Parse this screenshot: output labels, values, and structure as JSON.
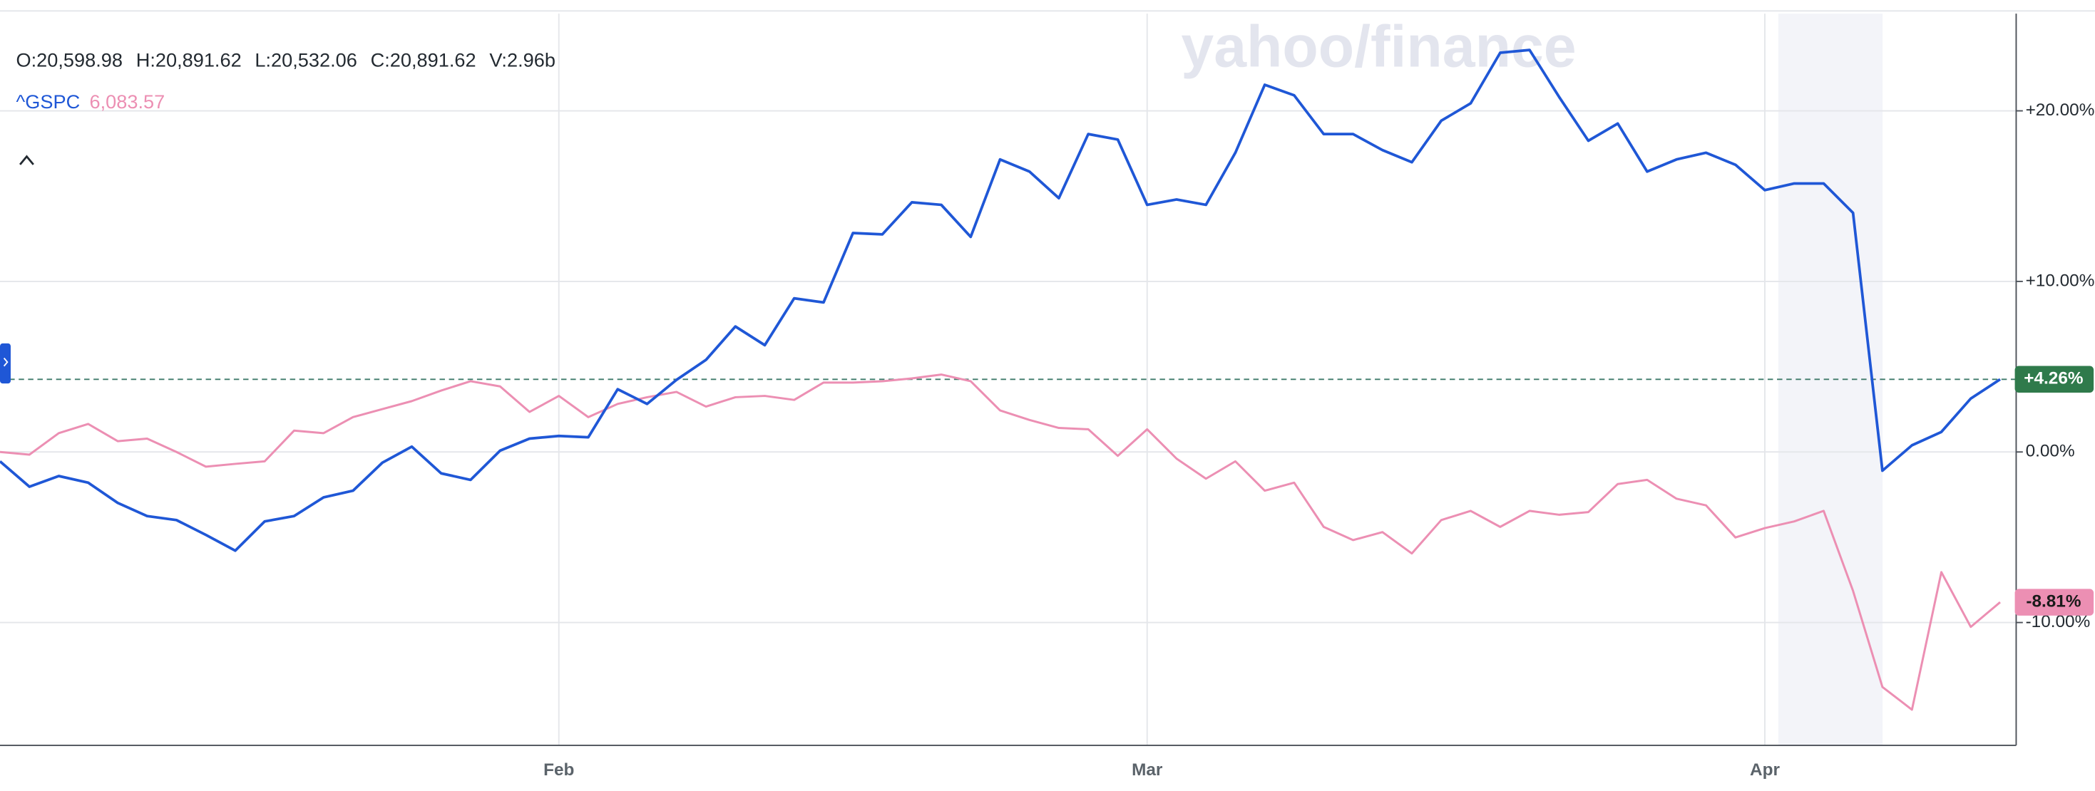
{
  "header": {
    "ohlcv": [
      "O:20,598.98",
      "H:20,891.62",
      "L:20,532.06",
      "C:20,891.62",
      "V:2.96b"
    ],
    "watermark": "yahoo/finance"
  },
  "chart_data": {
    "type": "line",
    "categories": [
      null,
      null,
      null,
      null,
      null,
      null,
      null,
      null,
      null,
      null,
      null,
      null,
      null,
      null,
      null,
      null,
      null,
      null,
      null,
      "Feb",
      null,
      null,
      null,
      null,
      null,
      null,
      null,
      null,
      null,
      null,
      null,
      null,
      null,
      null,
      null,
      null,
      null,
      null,
      null,
      "Mar",
      null,
      null,
      null,
      null,
      null,
      null,
      null,
      null,
      null,
      null,
      null,
      null,
      null,
      null,
      null,
      null,
      null,
      null,
      null,
      null,
      "Apr",
      null,
      null,
      null,
      null,
      null,
      null,
      null,
      null
    ],
    "series": [
      {
        "color": "#1f57d6",
        "end_label": "+4.26%",
        "values": [
          -0.55,
          -2.04,
          -1.41,
          -1.8,
          -2.98,
          -3.76,
          -3.99,
          -4.86,
          -5.79,
          -4.07,
          -3.76,
          -2.66,
          -2.27,
          -0.63,
          0.31,
          -1.25,
          -1.64,
          0.08,
          0.78,
          0.94,
          0.86,
          3.68,
          2.82,
          4.23,
          5.4,
          7.36,
          6.26,
          9.01,
          8.77,
          12.84,
          12.76,
          14.64,
          14.49,
          12.61,
          17.15,
          16.44,
          14.88,
          18.64,
          18.32,
          14.49,
          14.8,
          14.49,
          17.54,
          21.53,
          20.91,
          18.64,
          18.64,
          17.7,
          16.99,
          19.42,
          20.44,
          23.41,
          23.57,
          20.83,
          18.25,
          19.26,
          16.44,
          17.15,
          17.54,
          16.84,
          15.35,
          15.74,
          15.74,
          14.02,
          -1.1,
          0.39,
          1.17,
          3.13,
          4.26
        ]
      },
      {
        "name": "^GSPC",
        "price": "6,083.57",
        "color": "#ec8fb3",
        "end_label": "-8.81%",
        "values": [
          0,
          -0.16,
          1.1,
          1.64,
          0.63,
          0.78,
          0,
          -0.86,
          -0.7,
          -0.55,
          1.25,
          1.1,
          2.04,
          2.51,
          2.98,
          3.6,
          4.15,
          3.84,
          2.35,
          3.29,
          2.04,
          2.82,
          3.21,
          3.52,
          2.66,
          3.21,
          3.29,
          3.05,
          4.07,
          4.07,
          4.15,
          4.31,
          4.54,
          4.15,
          2.43,
          1.88,
          1.41,
          1.33,
          -0.23,
          1.33,
          -0.39,
          -1.57,
          -0.55,
          -2.27,
          -1.8,
          -4.39,
          -5.17,
          -4.7,
          -5.95,
          -3.99,
          -3.45,
          -4.39,
          -3.45,
          -3.68,
          -3.52,
          -1.88,
          -1.64,
          -2.74,
          -3.13,
          -5.01,
          -4.46,
          -4.07,
          -3.45,
          -8.14,
          -13.78,
          -15.11,
          -7.05,
          -10.26,
          -8.81
        ]
      }
    ],
    "ylim": [
      -17.2,
      25.7
    ],
    "yticks": [
      {
        "value": 20,
        "label": "+20.00%"
      },
      {
        "value": 10,
        "label": "+10.00%"
      },
      {
        "value": 0,
        "label": "0.00%"
      },
      {
        "value": -10,
        "label": "-10.00%"
      }
    ],
    "grid": true
  }
}
